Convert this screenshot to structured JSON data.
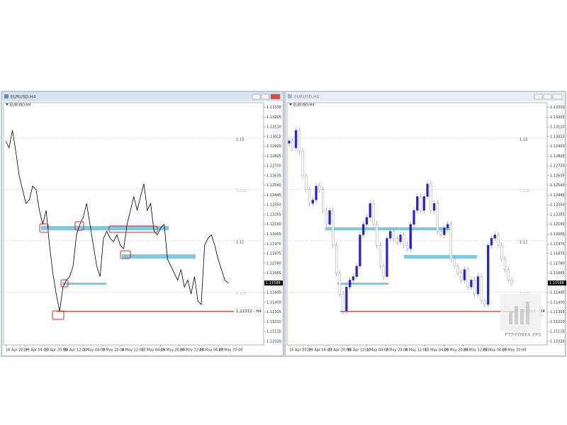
{
  "windows": [
    {
      "title": "EURUSD,H4",
      "chart_data": {
        "type": "line",
        "label": "EURUSD,H4",
        "color": "#000000",
        "values": [
          1.12974,
          1.12906,
          1.13076,
          1.12872,
          1.12635,
          1.12499,
          1.12364,
          1.12397,
          1.12533,
          1.12499,
          1.12296,
          1.1216,
          1.12296,
          1.11956,
          1.11685,
          1.11481,
          1.11312,
          1.11549,
          1.11617,
          1.11651,
          1.11753,
          1.12058,
          1.1216,
          1.12228,
          1.12364,
          1.1216,
          1.11956,
          1.11753,
          1.11651,
          1.12024,
          1.12092,
          1.12024,
          1.1199,
          1.12058,
          1.11956,
          1.11923,
          1.1216,
          1.12296,
          1.12431,
          1.12296,
          1.12431,
          1.12554,
          1.12296,
          1.12364,
          1.12092,
          1.12058,
          1.12126,
          1.1216,
          1.11821,
          1.11753,
          1.11685,
          1.11617,
          1.11719,
          1.11549,
          1.11617,
          1.11481,
          1.11651,
          1.11414,
          1.1138,
          1.11956,
          1.12024,
          1.12058,
          1.11956,
          1.11821,
          1.11719,
          1.11617,
          1.11588
        ],
        "ylim": [
          1.10985,
          1.13345
        ],
        "yticks": [
          {
            "value": 1.133,
            "label": "1.13300"
          },
          {
            "value": 1.13205,
            "label": "1.13205"
          },
          {
            "value": 1.1311,
            "label": "1.13110"
          },
          {
            "value": 1.13015,
            "label": "1.13015"
          },
          {
            "value": 1.1292,
            "label": "1.12920"
          },
          {
            "value": 1.12825,
            "label": "1.12825"
          },
          {
            "value": 1.1273,
            "label": "1.12730"
          },
          {
            "value": 1.12635,
            "label": "1.12635"
          },
          {
            "value": 1.1254,
            "label": "1.12540"
          },
          {
            "value": 1.12445,
            "label": "1.12445"
          },
          {
            "value": 1.1235,
            "label": "1.12350"
          },
          {
            "value": 1.12255,
            "label": "1.12255"
          },
          {
            "value": 1.1216,
            "label": "1.12160"
          },
          {
            "value": 1.12065,
            "label": "1.12065"
          },
          {
            "value": 1.1197,
            "label": "1.11970"
          },
          {
            "value": 1.11875,
            "label": "1.11875"
          },
          {
            "value": 1.1178,
            "label": "1.11780"
          },
          {
            "value": 1.11685,
            "label": "1.11685"
          },
          {
            "value": 1.11495,
            "label": "1.11495"
          },
          {
            "value": 1.114,
            "label": "1.11400"
          },
          {
            "value": 1.11305,
            "label": "1.11305"
          },
          {
            "value": 1.1121,
            "label": "1.11210"
          },
          {
            "value": 1.11115,
            "label": "1.11115"
          },
          {
            "value": 1.1102,
            "label": "1.11020"
          }
        ],
        "x_labels": [
          "16 Apr 2019",
          "19 Apr 04:00",
          "23 Apr 20:00",
          "26 Apr 12:00",
          "1 May 04:00",
          "3 May 20:00",
          "8 May 12:00",
          "13 May 04:00",
          "15 May 20:00",
          "20 May 12:00",
          "23 May 04:00",
          "27 May 20:00"
        ],
        "hlines": [
          1.13,
          1.125,
          1.12,
          1.115
        ],
        "hline_colors": [
          "#444444",
          "#bbbbbb",
          "#444444",
          "#bbbbbb"
        ],
        "support": {
          "value": 1.11312,
          "label": "1.11312 - H4",
          "color": "#e8402a"
        },
        "last_price": 1.11588
      }
    },
    {
      "title": "EURUSD,H4",
      "chart_data": {
        "type": "candlestick",
        "label": "EURUSD,H4",
        "up_color": "#2323d0",
        "down_color": "#ffffff",
        "wick_color": "#8a8a8a",
        "open": [
          1.1295,
          1.12974,
          1.12906,
          1.13076,
          1.12872,
          1.12635,
          1.12499,
          1.12364,
          1.12397,
          1.12533,
          1.12499,
          1.12296,
          1.1216,
          1.12296,
          1.11956,
          1.11685,
          1.11481,
          1.11312,
          1.11549,
          1.11617,
          1.11651,
          1.11753,
          1.12058,
          1.1216,
          1.12228,
          1.12364,
          1.1216,
          1.11956,
          1.11753,
          1.11651,
          1.12024,
          1.12092,
          1.12024,
          1.1199,
          1.12058,
          1.11956,
          1.11923,
          1.1216,
          1.12296,
          1.12431,
          1.12296,
          1.12431,
          1.12554,
          1.12296,
          1.12364,
          1.12092,
          1.12058,
          1.12126,
          1.1216,
          1.11821,
          1.11753,
          1.11685,
          1.11617,
          1.11719,
          1.11549,
          1.11617,
          1.11481,
          1.11651,
          1.11414,
          1.1138,
          1.11956,
          1.12024,
          1.12058,
          1.11956,
          1.11821,
          1.11719,
          1.11617
        ],
        "high": [
          1.13004,
          1.13004,
          1.13106,
          1.13106,
          1.12902,
          1.12665,
          1.12529,
          1.12427,
          1.12563,
          1.12563,
          1.12529,
          1.12326,
          1.12326,
          1.12326,
          1.11986,
          1.11715,
          1.11511,
          1.11579,
          1.11647,
          1.11681,
          1.11783,
          1.12088,
          1.1219,
          1.12258,
          1.12394,
          1.12394,
          1.1219,
          1.11986,
          1.11783,
          1.12054,
          1.12122,
          1.12122,
          1.12054,
          1.12088,
          1.12088,
          1.11986,
          1.1219,
          1.12326,
          1.12461,
          1.12461,
          1.12461,
          1.12584,
          1.12584,
          1.12394,
          1.12394,
          1.12122,
          1.12156,
          1.1219,
          1.1219,
          1.11851,
          1.11783,
          1.11715,
          1.11749,
          1.11749,
          1.11647,
          1.11647,
          1.11681,
          1.11681,
          1.11444,
          1.11986,
          1.12054,
          1.12088,
          1.12088,
          1.11986,
          1.11851,
          1.11749,
          1.11647
        ],
        "low": [
          1.1292,
          1.12876,
          1.12876,
          1.12842,
          1.12605,
          1.12469,
          1.12334,
          1.12334,
          1.12367,
          1.12469,
          1.12266,
          1.1213,
          1.1213,
          1.11926,
          1.11655,
          1.11451,
          1.11282,
          1.11282,
          1.11519,
          1.11587,
          1.11621,
          1.11723,
          1.12028,
          1.1213,
          1.12198,
          1.1213,
          1.11926,
          1.11723,
          1.11621,
          1.11621,
          1.11994,
          1.11994,
          1.1196,
          1.1196,
          1.11926,
          1.11893,
          1.11893,
          1.1213,
          1.12266,
          1.12266,
          1.12266,
          1.12401,
          1.12266,
          1.12266,
          1.12062,
          1.12028,
          1.12028,
          1.12096,
          1.11791,
          1.11723,
          1.11655,
          1.11587,
          1.11587,
          1.11519,
          1.11519,
          1.11451,
          1.11451,
          1.11384,
          1.1135,
          1.1135,
          1.11926,
          1.11994,
          1.11926,
          1.11791,
          1.11689,
          1.11587,
          1.11558
        ],
        "close": [
          1.12974,
          1.12906,
          1.13076,
          1.12872,
          1.12635,
          1.12499,
          1.12364,
          1.12397,
          1.12533,
          1.12499,
          1.12296,
          1.1216,
          1.12296,
          1.11956,
          1.11685,
          1.11481,
          1.11312,
          1.11549,
          1.11617,
          1.11651,
          1.11753,
          1.12058,
          1.1216,
          1.12228,
          1.12364,
          1.1216,
          1.11956,
          1.11753,
          1.11651,
          1.12024,
          1.12092,
          1.12024,
          1.1199,
          1.12058,
          1.11956,
          1.11923,
          1.1216,
          1.12296,
          1.12431,
          1.12296,
          1.12431,
          1.12554,
          1.12296,
          1.12364,
          1.12092,
          1.12058,
          1.12126,
          1.1216,
          1.11821,
          1.11753,
          1.11685,
          1.11617,
          1.11719,
          1.11549,
          1.11617,
          1.11481,
          1.11651,
          1.11414,
          1.1138,
          1.11956,
          1.12024,
          1.12058,
          1.11956,
          1.11821,
          1.11719,
          1.11617,
          1.11588
        ],
        "ylim": [
          1.10985,
          1.13345
        ],
        "yticks": [
          {
            "value": 1.133,
            "label": "1.13300"
          },
          {
            "value": 1.13205,
            "label": "1.13205"
          },
          {
            "value": 1.1311,
            "label": "1.13110"
          },
          {
            "value": 1.13015,
            "label": "1.13015"
          },
          {
            "value": 1.1292,
            "label": "1.12920"
          },
          {
            "value": 1.12825,
            "label": "1.12825"
          },
          {
            "value": 1.1273,
            "label": "1.12730"
          },
          {
            "value": 1.12635,
            "label": "1.12635"
          },
          {
            "value": 1.1254,
            "label": "1.12540"
          },
          {
            "value": 1.12445,
            "label": "1.12445"
          },
          {
            "value": 1.1235,
            "label": "1.12350"
          },
          {
            "value": 1.12255,
            "label": "1.12255"
          },
          {
            "value": 1.1216,
            "label": "1.12160"
          },
          {
            "value": 1.12065,
            "label": "1.12065"
          },
          {
            "value": 1.1197,
            "label": "1.11970"
          },
          {
            "value": 1.11875,
            "label": "1.11875"
          },
          {
            "value": 1.1178,
            "label": "1.11780"
          },
          {
            "value": 1.11685,
            "label": "1.11685"
          },
          {
            "value": 1.11495,
            "label": "1.11495"
          },
          {
            "value": 1.114,
            "label": "1.11400"
          },
          {
            "value": 1.11305,
            "label": "1.11305"
          },
          {
            "value": 1.1121,
            "label": "1.11210"
          },
          {
            "value": 1.11115,
            "label": "1.11115"
          },
          {
            "value": 1.1102,
            "label": "1.11020"
          }
        ],
        "x_labels": [
          "16 Apr 2019",
          "19 Apr 04:00",
          "23 Apr 20:00",
          "26 Apr 12:00",
          "1 May 04:00",
          "3 May 20:00",
          "8 May 12:00",
          "13 May 04:00",
          "15 May 20:00",
          "20 May 12:00",
          "23 May 04:00",
          "27 May 20:00"
        ],
        "hlines": [
          1.13,
          1.125,
          1.12,
          1.115
        ],
        "hline_colors": [
          "#444444",
          "#bbbbbb",
          "#444444",
          "#bbbbbb"
        ],
        "support": {
          "value": 1.11312,
          "label": "1.11312 - H4",
          "color": "#e8402a"
        },
        "last_price": 1.11588,
        "watermark": "FTT-FOREX EPS"
      }
    }
  ]
}
